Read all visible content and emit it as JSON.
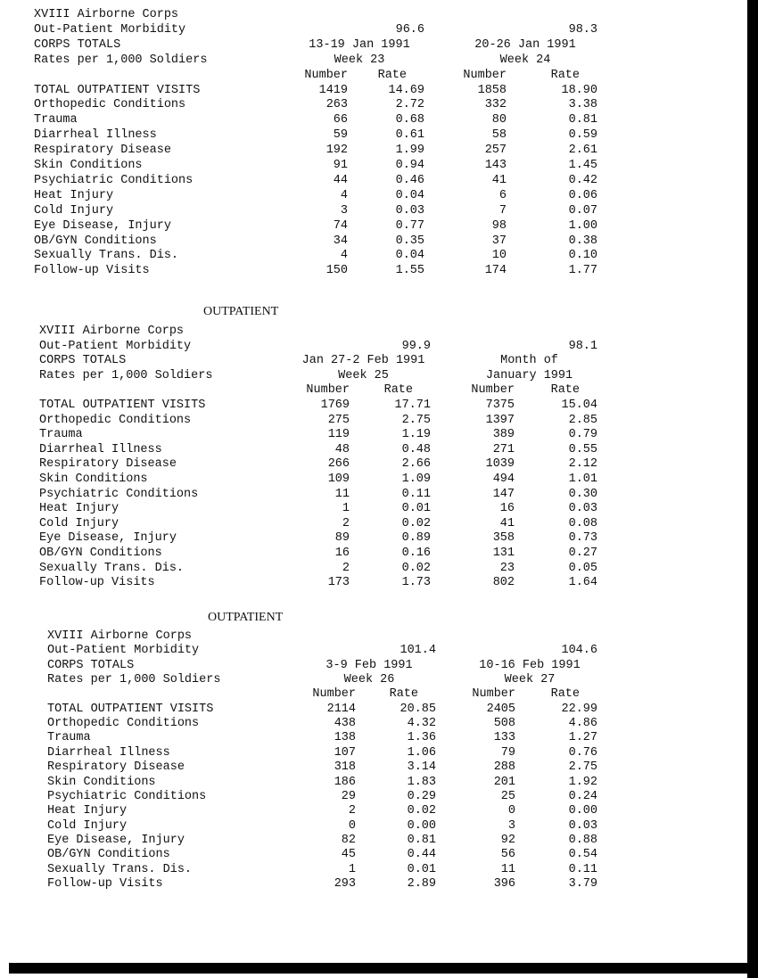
{
  "blocks": [
    {
      "section_title": "",
      "header": {
        "unit": "XVIII Airborne Corps",
        "title": "Out-Patient Morbidity",
        "totals": "CORPS TOTALS",
        "rates": "Rates per 1,000 Soldiers"
      },
      "periods": [
        {
          "strength": "96.6",
          "dates": "13-19 Jan 1991",
          "week": "Week 23"
        },
        {
          "strength": "98.3",
          "dates": "20-26 Jan 1991",
          "week": "Week 24"
        }
      ],
      "col_headers": [
        "Number",
        "Rate",
        "Number",
        "Rate"
      ],
      "rows": [
        [
          "TOTAL OUTPATIENT VISITS",
          "1419",
          "14.69",
          "1858",
          "18.90"
        ],
        [
          "Orthopedic Conditions",
          "263",
          "2.72",
          "332",
          "3.38"
        ],
        [
          "Trauma",
          "66",
          "0.68",
          "80",
          "0.81"
        ],
        [
          "Diarrheal Illness",
          "59",
          "0.61",
          "58",
          "0.59"
        ],
        [
          "Respiratory Disease",
          "192",
          "1.99",
          "257",
          "2.61"
        ],
        [
          "Skin Conditions",
          "91",
          "0.94",
          "143",
          "1.45"
        ],
        [
          "Psychiatric Conditions",
          "44",
          "0.46",
          "41",
          "0.42"
        ],
        [
          "Heat Injury",
          "4",
          "0.04",
          "6",
          "0.06"
        ],
        [
          "Cold Injury",
          "3",
          "0.03",
          "7",
          "0.07"
        ],
        [
          "Eye Disease, Injury",
          "74",
          "0.77",
          "98",
          "1.00"
        ],
        [
          "OB/GYN Conditions",
          "34",
          "0.35",
          "37",
          "0.38"
        ],
        [
          "Sexually Trans. Dis.",
          "4",
          "0.04",
          "10",
          "0.10"
        ],
        [
          "Follow-up Visits",
          "150",
          "1.55",
          "174",
          "1.77"
        ]
      ]
    },
    {
      "section_title": "OUTPATIENT",
      "header": {
        "unit": "XVIII Airborne Corps",
        "title": "Out-Patient Morbidity",
        "totals": "CORPS TOTALS",
        "rates": "Rates per 1,000 Soldiers"
      },
      "periods": [
        {
          "strength": "99.9",
          "dates": "Jan 27-2 Feb 1991",
          "week": "Week 25"
        },
        {
          "strength": "98.1",
          "dates": "Month of",
          "week": "January 1991"
        }
      ],
      "col_headers": [
        "Number",
        "Rate",
        "Number",
        "Rate"
      ],
      "rows": [
        [
          "TOTAL OUTPATIENT VISITS",
          "1769",
          "17.71",
          "7375",
          "15.04"
        ],
        [
          "Orthopedic Conditions",
          "275",
          "2.75",
          "1397",
          "2.85"
        ],
        [
          "Trauma",
          "119",
          "1.19",
          "389",
          "0.79"
        ],
        [
          "Diarrheal Illness",
          "48",
          "0.48",
          "271",
          "0.55"
        ],
        [
          "Respiratory Disease",
          "266",
          "2.66",
          "1039",
          "2.12"
        ],
        [
          "Skin Conditions",
          "109",
          "1.09",
          "494",
          "1.01"
        ],
        [
          "Psychiatric Conditions",
          "11",
          "0.11",
          "147",
          "0.30"
        ],
        [
          "Heat Injury",
          "1",
          "0.01",
          "16",
          "0.03"
        ],
        [
          "Cold Injury",
          "2",
          "0.02",
          "41",
          "0.08"
        ],
        [
          "Eye Disease, Injury",
          "89",
          "0.89",
          "358",
          "0.73"
        ],
        [
          "OB/GYN Conditions",
          "16",
          "0.16",
          "131",
          "0.27"
        ],
        [
          "Sexually Trans. Dis.",
          "2",
          "0.02",
          "23",
          "0.05"
        ],
        [
          "Follow-up Visits",
          "173",
          "1.73",
          "802",
          "1.64"
        ]
      ]
    },
    {
      "section_title": "OUTPATIENT",
      "header": {
        "unit": "XVIII Airborne Corps",
        "title": "Out-Patient Morbidity",
        "totals": "CORPS TOTALS",
        "rates": "Rates per 1,000 Soldiers"
      },
      "periods": [
        {
          "strength": "101.4",
          "dates": "3-9 Feb 1991",
          "week": "Week 26"
        },
        {
          "strength": "104.6",
          "dates": "10-16 Feb 1991",
          "week": "Week 27"
        }
      ],
      "col_headers": [
        "Number",
        "Rate",
        "Number",
        "Rate"
      ],
      "rows": [
        [
          "TOTAL OUTPATIENT VISITS",
          "2114",
          "20.85",
          "2405",
          "22.99"
        ],
        [
          "Orthopedic Conditions",
          "438",
          "4.32",
          "508",
          "4.86"
        ],
        [
          "Trauma",
          "138",
          "1.36",
          "133",
          "1.27"
        ],
        [
          "Diarrheal Illness",
          "107",
          "1.06",
          "79",
          "0.76"
        ],
        [
          "Respiratory Disease",
          "318",
          "3.14",
          "288",
          "2.75"
        ],
        [
          "Skin Conditions",
          "186",
          "1.83",
          "201",
          "1.92"
        ],
        [
          "Psychiatric Conditions",
          "29",
          "0.29",
          "25",
          "0.24"
        ],
        [
          "Heat Injury",
          "2",
          "0.02",
          "0",
          "0.00"
        ],
        [
          "Cold Injury",
          "0",
          "0.00",
          "3",
          "0.03"
        ],
        [
          "Eye Disease, Injury",
          "82",
          "0.81",
          "92",
          "0.88"
        ],
        [
          "OB/GYN Conditions",
          "45",
          "0.44",
          "56",
          "0.54"
        ],
        [
          "Sexually Trans. Dis.",
          "1",
          "0.01",
          "11",
          "0.11"
        ],
        [
          "Follow-up Visits",
          "293",
          "2.89",
          "396",
          "3.79"
        ]
      ]
    }
  ]
}
